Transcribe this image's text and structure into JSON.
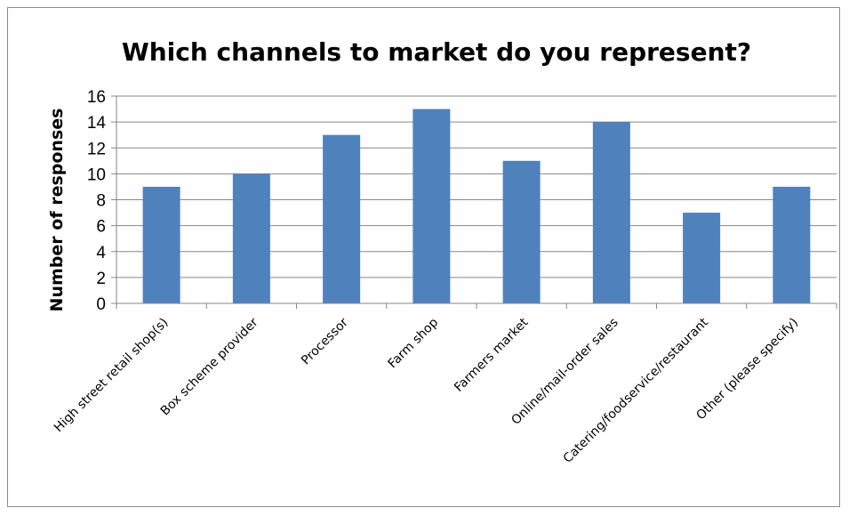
{
  "chart_data": {
    "type": "bar",
    "title": "Which channels to market do you represent?",
    "xlabel": "",
    "ylabel": "Number of responses",
    "categories": [
      "High street retail shop(s)",
      "Box scheme provider",
      "Processor",
      "Farm shop",
      "Farmers market",
      "Online/mail-order sales",
      "Catering/foodservice/restaurant",
      "Other (please specify)"
    ],
    "values": [
      9,
      10,
      13,
      15,
      11,
      14,
      7,
      9
    ],
    "ylim": [
      0,
      16
    ],
    "yticks": [
      "0",
      "2",
      "4",
      "6",
      "8",
      "10",
      "12",
      "14",
      "16"
    ],
    "grid": true,
    "legend": "none",
    "bar_color": "#4f81bd",
    "grid_color": "#868686"
  }
}
